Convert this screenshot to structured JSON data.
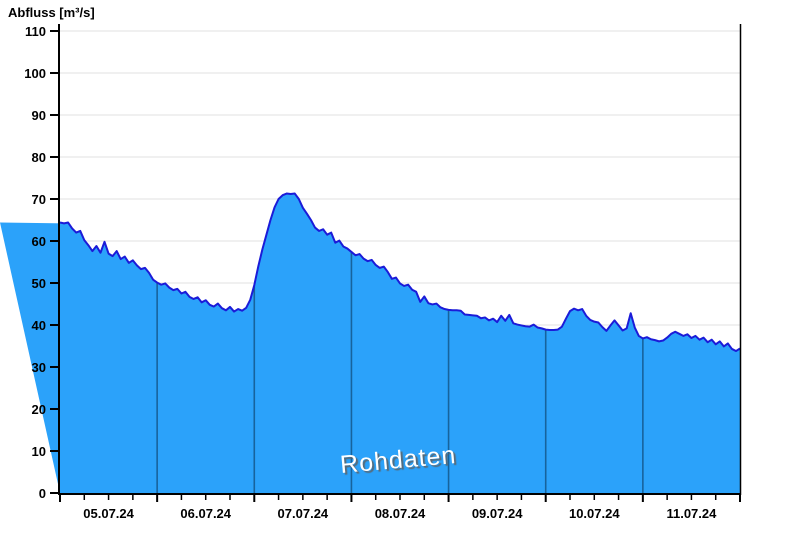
{
  "title": "Abfluss [m³/s]",
  "watermark": "Rohdaten",
  "colors": {
    "area_fill": "#2ba2fa",
    "curve_line": "#1b1bd8",
    "day_gridline_in_area": "#17639c",
    "horizontal_gridline": "#ececec",
    "axis": "#000000",
    "tick_label": "#000000",
    "watermark_text": "#ffffff",
    "watermark_shadow": "#5f5f5f",
    "background": "#ffffff"
  },
  "chart_data": {
    "type": "area",
    "title": "Abfluss [m³/s]",
    "ylabel": "Abfluss [m³/s]",
    "xlabel": "",
    "annotation": "Rohdaten",
    "legend": "none",
    "grid": "horizontal light gray lines every 10; dark vertical day-boundary lines visible inside filled area",
    "ylim": [
      0,
      110
    ],
    "y_tick_step": 10,
    "y_tick_labels": [
      "0",
      "10",
      "20",
      "30",
      "40",
      "50",
      "60",
      "70",
      "80",
      "90",
      "100",
      "110"
    ],
    "x_tick_labels": [
      "05.07.24",
      "06.07.24",
      "07.07.24",
      "08.07.24",
      "09.07.24",
      "10.07.24",
      "11.07.24"
    ],
    "x_start": "05.07.24 00:00",
    "x_end": "12.07.24 00:00",
    "days_shown": 7,
    "minor_x_ticks_per_day": 4,
    "sample_interval_hours": 1,
    "values": [
      64.4,
      64.2,
      64.4,
      63.0,
      62.0,
      62.4,
      60.2,
      59.0,
      57.6,
      58.8,
      57.2,
      59.8,
      57.0,
      56.4,
      57.6,
      55.7,
      56.3,
      54.8,
      55.4,
      54.2,
      53.3,
      53.6,
      52.4,
      50.8,
      50.1,
      49.6,
      49.9,
      48.9,
      48.3,
      48.6,
      47.5,
      47.9,
      46.7,
      46.2,
      46.6,
      45.4,
      45.9,
      44.8,
      44.4,
      45.1,
      44.0,
      43.5,
      44.3,
      43.2,
      43.8,
      43.4,
      44.1,
      46.0,
      49.5,
      54.0,
      58.0,
      61.5,
      65.0,
      68.0,
      70.0,
      70.9,
      71.3,
      71.2,
      71.3,
      70.0,
      67.9,
      66.5,
      65.0,
      63.2,
      62.4,
      62.8,
      61.5,
      62.0,
      59.6,
      60.1,
      58.7,
      58.2,
      57.4,
      56.6,
      56.9,
      55.8,
      55.2,
      55.5,
      54.3,
      53.6,
      53.9,
      52.6,
      51.0,
      51.3,
      49.9,
      49.3,
      49.6,
      48.4,
      47.9,
      45.5,
      46.8,
      45.2,
      44.9,
      45.1,
      44.2,
      43.8,
      43.6,
      43.5,
      43.5,
      43.4,
      42.5,
      42.4,
      42.3,
      42.2,
      41.6,
      41.8,
      41.1,
      41.5,
      40.7,
      42.2,
      41.0,
      42.4,
      40.4,
      40.1,
      39.9,
      39.7,
      39.6,
      40.1,
      39.4,
      39.2,
      38.9,
      38.8,
      38.8,
      38.9,
      39.6,
      41.5,
      43.3,
      43.9,
      43.5,
      43.8,
      42.2,
      41.2,
      40.8,
      40.6,
      39.5,
      38.6,
      39.9,
      41.1,
      39.9,
      38.7,
      39.2,
      42.8,
      39.4,
      37.4,
      36.8,
      37.1,
      36.6,
      36.4,
      36.1,
      36.3,
      37.0,
      37.9,
      38.4,
      37.9,
      37.4,
      37.8,
      36.9,
      37.4,
      36.5,
      37.0,
      35.9,
      36.5,
      35.4,
      36.1,
      34.9,
      35.6,
      34.3,
      33.8,
      34.4
    ]
  }
}
